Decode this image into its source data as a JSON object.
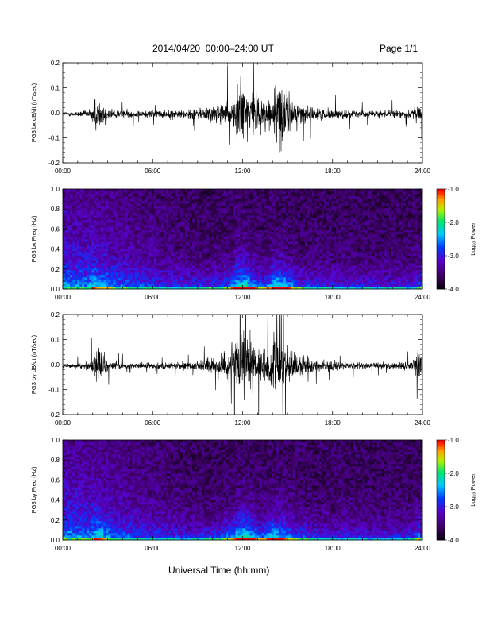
{
  "header": {
    "title": "2014/04/20  00:00–24:00 UT",
    "page": "Page 1/1"
  },
  "x_axis_title": "Universal Time (hh:mm)",
  "colors": {
    "trace": "#000000",
    "spectrogram_background": "#200035"
  },
  "chart_data": [
    {
      "type": "line",
      "panel": "PG3 bx dB/dt",
      "ylabel": "PG3 bx dB/dt (nT/sec)",
      "xlim": [
        0,
        24
      ],
      "ylim": [
        -0.2,
        0.2
      ],
      "xticks": [
        "00:00",
        "06:00",
        "12:00",
        "18:00",
        "24:00"
      ],
      "yticks": [
        "-0.2",
        "-0.1",
        "0.0",
        "0.1",
        "0.2"
      ],
      "envelope": [
        {
          "t": 0.0,
          "a": 0.012
        },
        {
          "t": 1.0,
          "a": 0.018
        },
        {
          "t": 1.8,
          "a": 0.03
        },
        {
          "t": 2.1,
          "a": 0.12
        },
        {
          "t": 2.4,
          "a": 0.08
        },
        {
          "t": 2.8,
          "a": 0.09
        },
        {
          "t": 3.2,
          "a": 0.04
        },
        {
          "t": 4.0,
          "a": 0.025
        },
        {
          "t": 6.0,
          "a": 0.025
        },
        {
          "t": 8.0,
          "a": 0.03
        },
        {
          "t": 9.5,
          "a": 0.05
        },
        {
          "t": 10.5,
          "a": 0.07
        },
        {
          "t": 11.2,
          "a": 0.1
        },
        {
          "t": 11.6,
          "a": 0.22
        },
        {
          "t": 12.3,
          "a": 0.22
        },
        {
          "t": 12.8,
          "a": 0.15
        },
        {
          "t": 13.3,
          "a": 0.09
        },
        {
          "t": 13.8,
          "a": 0.14
        },
        {
          "t": 14.2,
          "a": 0.22
        },
        {
          "t": 14.8,
          "a": 0.2
        },
        {
          "t": 15.4,
          "a": 0.1
        },
        {
          "t": 16.0,
          "a": 0.06
        },
        {
          "t": 17.0,
          "a": 0.04
        },
        {
          "t": 19.0,
          "a": 0.03
        },
        {
          "t": 21.0,
          "a": 0.025
        },
        {
          "t": 23.3,
          "a": 0.03
        },
        {
          "t": 23.8,
          "a": 0.08
        },
        {
          "t": 24.0,
          "a": 0.06
        }
      ]
    },
    {
      "type": "heatmap",
      "panel": "PG3 bx Freq spectrogram",
      "ylabel": "PG3 bx Freq (Hz)",
      "colorbar_label": "Log₁₀ Power",
      "xlim": [
        0,
        24
      ],
      "ylim": [
        0.0,
        1.0
      ],
      "xticks": [
        "00:00",
        "06:00",
        "12:00",
        "18:00",
        "24:00"
      ],
      "yticks": [
        "0.0",
        "0.2",
        "0.4",
        "0.6",
        "0.8",
        "1.0"
      ],
      "color_range": [
        -4.0,
        -1.0
      ],
      "colorbar_ticks": [
        "-1.0",
        "-2.0",
        "-3.0",
        "-4.0"
      ]
    },
    {
      "type": "line",
      "panel": "PG3 by dB/dt",
      "ylabel": "PG3 by dB/dt (nT/sec)",
      "xlim": [
        0,
        24
      ],
      "ylim": [
        -0.2,
        0.2
      ],
      "xticks": [
        "00:00",
        "06:00",
        "12:00",
        "18:00",
        "24:00"
      ],
      "yticks": [
        "-0.2",
        "-0.1",
        "0.0",
        "0.1",
        "0.2"
      ],
      "envelope": [
        {
          "t": 0.0,
          "a": 0.012
        },
        {
          "t": 1.0,
          "a": 0.016
        },
        {
          "t": 1.8,
          "a": 0.03
        },
        {
          "t": 2.2,
          "a": 0.12
        },
        {
          "t": 2.6,
          "a": 0.1
        },
        {
          "t": 3.0,
          "a": 0.04
        },
        {
          "t": 4.0,
          "a": 0.02
        },
        {
          "t": 6.0,
          "a": 0.02
        },
        {
          "t": 8.0,
          "a": 0.025
        },
        {
          "t": 9.5,
          "a": 0.04
        },
        {
          "t": 10.5,
          "a": 0.07
        },
        {
          "t": 11.2,
          "a": 0.12
        },
        {
          "t": 11.8,
          "a": 0.22
        },
        {
          "t": 12.4,
          "a": 0.22
        },
        {
          "t": 12.9,
          "a": 0.14
        },
        {
          "t": 13.3,
          "a": 0.1
        },
        {
          "t": 14.0,
          "a": 0.2
        },
        {
          "t": 14.6,
          "a": 0.18
        },
        {
          "t": 15.4,
          "a": 0.1
        },
        {
          "t": 16.2,
          "a": 0.06
        },
        {
          "t": 17.0,
          "a": 0.04
        },
        {
          "t": 19.0,
          "a": 0.025
        },
        {
          "t": 21.0,
          "a": 0.02
        },
        {
          "t": 23.3,
          "a": 0.03
        },
        {
          "t": 23.8,
          "a": 0.13
        },
        {
          "t": 24.0,
          "a": 0.05
        }
      ]
    },
    {
      "type": "heatmap",
      "panel": "PG3 by Freq spectrogram",
      "ylabel": "PG3 by Freq (Hz)",
      "colorbar_label": "Log₁₀ Power",
      "xlim": [
        0,
        24
      ],
      "ylim": [
        0.0,
        1.0
      ],
      "xticks": [
        "00:00",
        "06:00",
        "12:00",
        "18:00",
        "24:00"
      ],
      "yticks": [
        "0.0",
        "0.2",
        "0.4",
        "0.6",
        "0.8",
        "1.0"
      ],
      "color_range": [
        -4.0,
        -1.0
      ],
      "colorbar_ticks": [
        "-1.0",
        "-2.0",
        "-3.0",
        "-4.0"
      ]
    }
  ]
}
